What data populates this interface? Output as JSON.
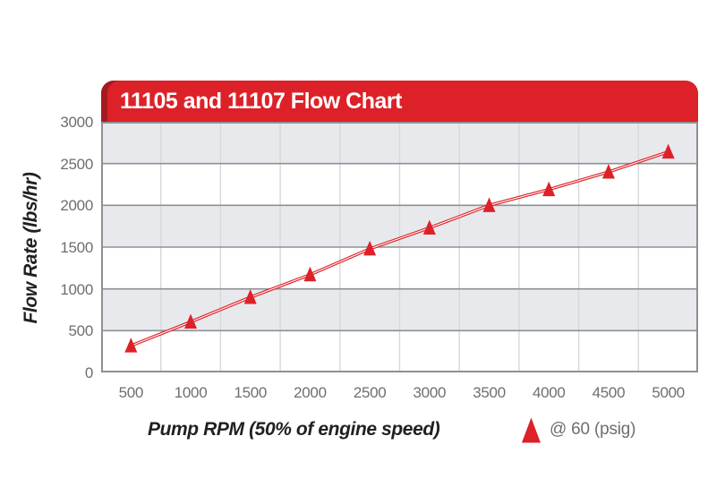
{
  "chart": {
    "title": "11105 and 11107 Flow Chart"
  },
  "chart_data": {
    "type": "line",
    "title": "11105 and 11107 Flow Chart",
    "xlabel": "Pump RPM (50% of engine speed)",
    "ylabel": "Flow Rate (lbs/hr)",
    "x": [
      500,
      1000,
      1500,
      2000,
      2500,
      3000,
      3500,
      4000,
      4500,
      5000
    ],
    "series": [
      {
        "name": "@ 60 (psig)",
        "marker": "triangle",
        "values": [
          320,
          605,
          900,
          1170,
          1480,
          1730,
          2000,
          2190,
          2400,
          2640
        ]
      }
    ],
    "ylim": [
      0,
      3000
    ],
    "yticks": [
      0,
      500,
      1000,
      1500,
      2000,
      2500,
      3000
    ],
    "xticks": [
      "500",
      "1000",
      "1500",
      "2000",
      "2500",
      "3000",
      "3500",
      "4000",
      "4500",
      "5000"
    ],
    "grid": "horizontal band stripes every 500 units, vertical gridlines at category boundaries",
    "legend_position": "bottom-right",
    "colors": {
      "accent_red": "#dd2128",
      "banner_red": "#dd2128",
      "banner_edge_dark_red": "#a81e24",
      "band_gray": "#e8e9ec",
      "vertical_gridline": "#d6d8db",
      "band_border_gray": "#8e9093",
      "tick_text_gray": "#6d6e71",
      "axis_title_black": "#231f20",
      "line_core_white": "#ffffff"
    }
  },
  "legend": {
    "label": "@ 60 (psig)"
  }
}
